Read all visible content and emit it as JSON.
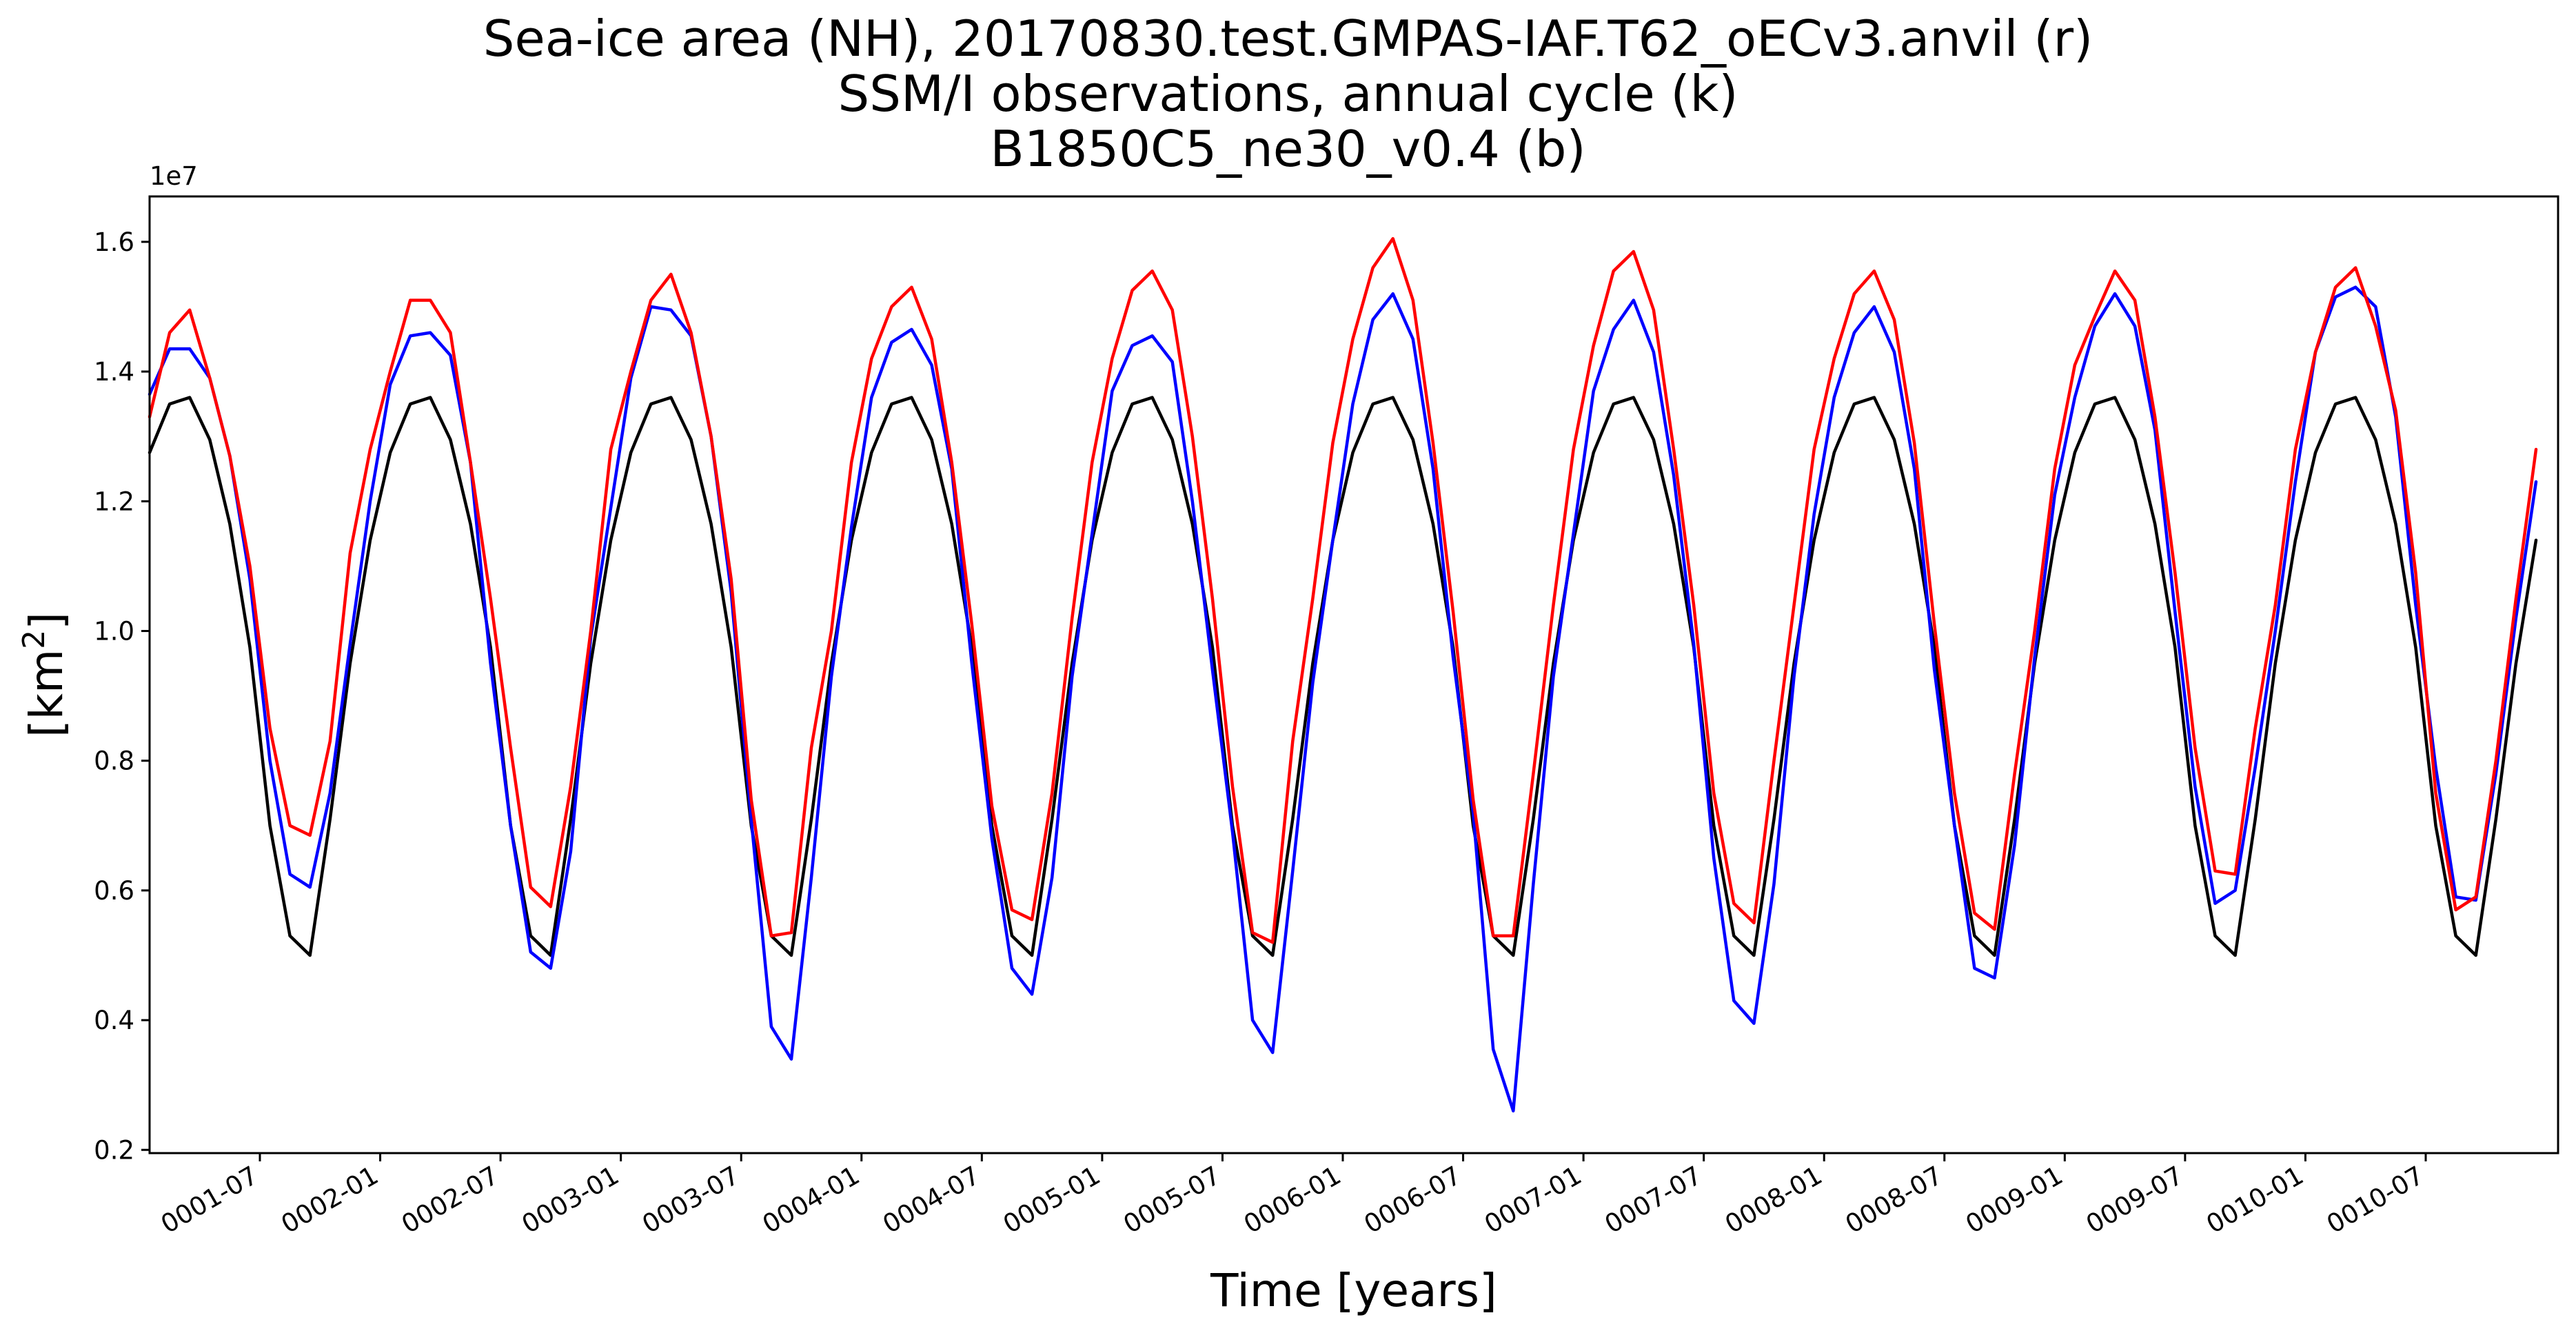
{
  "chart_data": {
    "type": "line",
    "title_lines": [
      "Sea-ice area (NH), 20170830.test.GMPAS-IAF.T62_oECv3.anvil (r)",
      "SSM/I observations, annual cycle (k)",
      "B1850C5_ne30_v0.4 (b)"
    ],
    "xlabel": "Time [years]",
    "ylabel_text": "[km",
    "ylabel_sup": "2",
    "ylabel_close": "]",
    "y_offset_text": "1e7",
    "ylim": [
      1.95,
      16.7
    ],
    "xlim": [
      0.5,
      120.6
    ],
    "y_ticks": [
      2,
      4,
      6,
      8,
      10,
      12,
      14,
      16
    ],
    "y_tick_labels": [
      "0.2",
      "0.4",
      "0.6",
      "0.8",
      "1.0",
      "1.2",
      "1.4",
      "1.6"
    ],
    "x_tick_months": [
      6,
      12,
      18,
      24,
      30,
      36,
      42,
      48,
      54,
      60,
      66,
      72,
      78,
      84,
      90,
      96,
      102,
      108,
      114
    ],
    "x_tick_labels": [
      "0001-07",
      "0002-01",
      "0002-07",
      "0003-01",
      "0003-07",
      "0004-01",
      "0004-07",
      "0005-01",
      "0005-07",
      "0006-01",
      "0006-07",
      "0007-01",
      "0007-07",
      "0008-01",
      "0008-07",
      "0009-01",
      "0009-07",
      "0010-01",
      "0010-07"
    ],
    "units_note": "values in units of 1e6 km^2; x = months since 0001-01",
    "series": [
      {
        "name": "20170830.test.GMPAS-IAF.T62_oECv3.anvil (r)",
        "color": "#ff0000",
        "yearly": [
          [
            13.3,
            14.6,
            14.95,
            13.9,
            12.7,
            11.0,
            8.5,
            7.0,
            6.85,
            8.3,
            11.2,
            12.8
          ],
          [
            14.0,
            15.1,
            15.1,
            14.6,
            12.6,
            10.5,
            8.2,
            6.05,
            5.75,
            7.6,
            10.0,
            12.8
          ],
          [
            14.0,
            15.1,
            15.5,
            14.6,
            13.0,
            10.8,
            7.4,
            5.3,
            5.35,
            8.2,
            10.0,
            12.6
          ],
          [
            14.2,
            15.0,
            15.3,
            14.5,
            12.6,
            10.1,
            7.3,
            5.7,
            5.55,
            7.5,
            10.2,
            12.6
          ],
          [
            14.2,
            15.25,
            15.55,
            14.95,
            13.0,
            10.5,
            7.6,
            5.35,
            5.2,
            8.3,
            10.5,
            12.9
          ],
          [
            14.5,
            15.6,
            16.05,
            15.1,
            12.9,
            10.3,
            7.4,
            5.3,
            5.3,
            7.8,
            10.4,
            12.8
          ],
          [
            14.4,
            15.55,
            15.85,
            14.95,
            12.8,
            10.4,
            7.5,
            5.8,
            5.5,
            8.0,
            10.4,
            12.8
          ],
          [
            14.2,
            15.2,
            15.55,
            14.8,
            12.9,
            10.1,
            7.5,
            5.65,
            5.4,
            7.8,
            10.0,
            12.5
          ],
          [
            14.1,
            14.85,
            15.55,
            15.1,
            13.3,
            10.9,
            8.2,
            6.3,
            6.25,
            8.5,
            10.4,
            12.8
          ],
          [
            14.3,
            15.3,
            15.6,
            14.7,
            13.4,
            10.9,
            7.5,
            5.7,
            5.9,
            8.0,
            10.5,
            12.8
          ]
        ]
      },
      {
        "name": "B1850C5_ne30_v0.4 (b)",
        "color": "#0000ff",
        "yearly": [
          [
            13.65,
            14.35,
            14.35,
            13.9,
            12.7,
            10.8,
            8.0,
            6.25,
            6.05,
            7.5,
            9.8,
            12.0
          ],
          [
            13.8,
            14.55,
            14.6,
            14.25,
            12.6,
            9.5,
            7.0,
            5.05,
            4.8,
            6.6,
            9.9,
            11.9
          ],
          [
            13.9,
            15.0,
            14.95,
            14.55,
            13.0,
            10.6,
            7.1,
            3.9,
            3.4,
            6.2,
            9.3,
            11.6
          ],
          [
            13.6,
            14.45,
            14.65,
            14.1,
            12.5,
            9.5,
            6.8,
            4.8,
            4.4,
            6.2,
            9.3,
            11.5
          ],
          [
            13.7,
            14.4,
            14.55,
            14.15,
            12.0,
            9.4,
            6.9,
            4.0,
            3.5,
            6.3,
            9.2,
            11.4
          ],
          [
            13.5,
            14.8,
            15.2,
            14.5,
            12.5,
            9.6,
            7.2,
            3.55,
            2.6,
            6.1,
            9.3,
            11.5
          ],
          [
            13.7,
            14.65,
            15.1,
            14.3,
            12.4,
            9.8,
            6.5,
            4.3,
            3.95,
            6.1,
            9.3,
            11.8
          ],
          [
            13.6,
            14.6,
            15.0,
            14.3,
            12.5,
            9.4,
            7.0,
            4.8,
            4.65,
            6.7,
            9.6,
            12.1
          ],
          [
            13.6,
            14.7,
            15.2,
            14.7,
            13.1,
            10.3,
            7.6,
            5.8,
            6.0,
            7.9,
            10.0,
            12.3
          ],
          [
            14.3,
            15.15,
            15.3,
            15.0,
            13.3,
            10.4,
            7.9,
            5.9,
            5.85,
            7.8,
            10.2,
            12.3
          ]
        ]
      },
      {
        "name": "SSM/I observations, annual cycle (k)",
        "color": "#000000",
        "climatology": [
          12.75,
          13.5,
          13.6,
          12.95,
          11.65,
          9.75,
          7.0,
          5.3,
          5.0,
          7.1,
          9.5,
          11.4
        ]
      }
    ]
  }
}
